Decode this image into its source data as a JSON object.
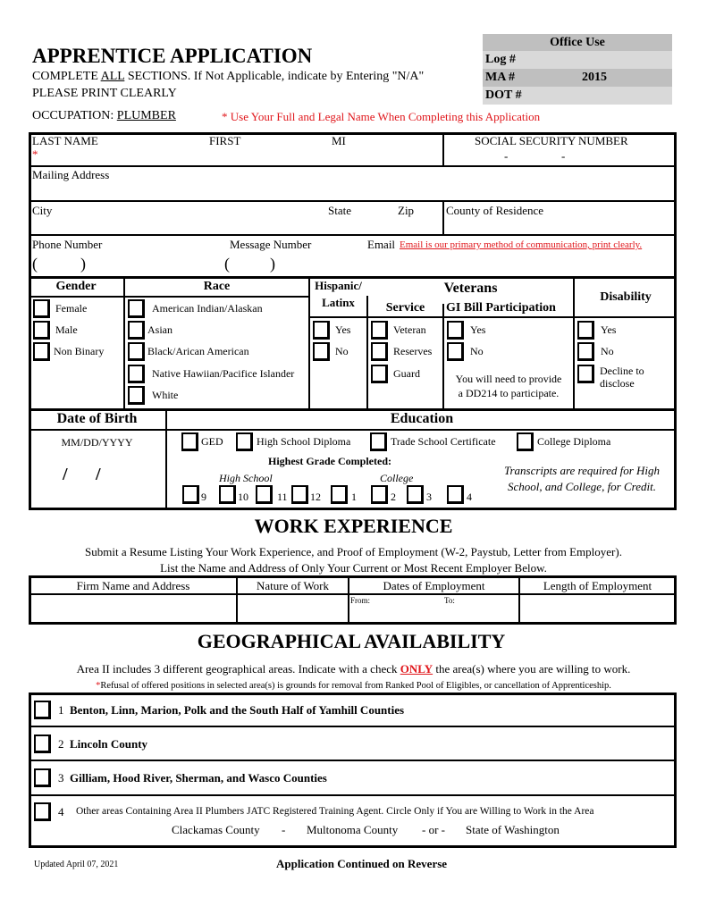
{
  "header": {
    "title": "APPRENTICE APPLICATION",
    "instruction_pre": "COMPLETE ",
    "instruction_all": "ALL",
    "instruction_post": " SECTIONS. If Not Applicable, indicate by Entering \"N/A\"",
    "print_clearly": "PLEASE PRINT CLEARLY",
    "occupation_label": "OCCUPATION: ",
    "occupation_value": "PLUMBER",
    "legal_name_note": "* Use Your Full and Legal Name When Completing this Application"
  },
  "office_use": {
    "title": "Office Use",
    "log_label": "Log #",
    "ma_label": "MA #",
    "ma_value": "2015",
    "dot_label": "DOT #"
  },
  "personal": {
    "last_name": "LAST NAME",
    "required_mark": "*",
    "first": "FIRST",
    "mi": "MI",
    "ssn": "SOCIAL SECURITY NUMBER",
    "ssn_dash": "-",
    "mailing": "Mailing Address",
    "city": "City",
    "state": "State",
    "zip": "Zip",
    "county": "County of Residence",
    "phone": "Phone Number",
    "message": "Message Number",
    "email": "Email",
    "email_note": "Email is our primary method of communication, print clearly.",
    "paren_open": "(",
    "paren_close": ")"
  },
  "demographics": {
    "gender": {
      "title": "Gender",
      "options": [
        "Female",
        "Male",
        "Non Binary"
      ]
    },
    "race": {
      "title": "Race",
      "options": [
        "American Indian/Alaskan",
        "Asian",
        "Black/Arican American",
        "Native Hawiian/Pacifice Islander",
        "White"
      ]
    },
    "hispanic": {
      "title1": "Hispanic/",
      "title2": "Latinx",
      "options": [
        "Yes",
        "No"
      ]
    },
    "veterans": {
      "title": "Veterans",
      "service_title": "Service",
      "service_options": [
        "Veteran",
        "Reserves",
        "Guard"
      ],
      "gi_title": "GI Bill Participation",
      "gi_options": [
        "Yes",
        "No"
      ],
      "gi_note1": "You will need to provide",
      "gi_note2": "a DD214 to participate."
    },
    "disability": {
      "title": "Disability",
      "options": [
        "Yes",
        "No",
        "Decline to",
        "disclose"
      ]
    }
  },
  "dob": {
    "title": "Date of Birth",
    "format": "MM/DD/YYYY",
    "slash": "/"
  },
  "education": {
    "title": "Education",
    "options": [
      "GED",
      "High School Diploma",
      "Trade School Certificate",
      "College Diploma"
    ],
    "highest_grade": "Highest Grade Completed:",
    "high_school": "High School",
    "college": "College",
    "grades": [
      "9",
      "10",
      "11",
      "12",
      "1",
      "2",
      "3",
      "4"
    ],
    "transcripts1": "Transcripts are required for High",
    "transcripts2": "School, and College, for Credit."
  },
  "work": {
    "title": "WORK EXPERIENCE",
    "line1": "Submit a Resume Listing Your Work Experience, and Proof of Employment (W-2, Paystub, Letter from Employer).",
    "line2": "List the Name and Address of Only Your Current or Most Recent Employer Below.",
    "columns": [
      "Firm Name and Address",
      "Nature of Work",
      "Dates of Employment",
      "Length of Employment"
    ],
    "from": "From:",
    "to": "To:"
  },
  "geo": {
    "title": "GEOGRAPHICAL AVAILABILITY",
    "line1_pre": "Area II includes 3 different geographical areas.  Indicate with a check ",
    "line1_only": "ONLY",
    "line1_post": " the area(s) where you are willing to work.",
    "warning_mark": "*",
    "warning": "Refusal of offered positions in selected area(s) is grounds for removal from Ranked Pool of Eligibles, or cancellation of Apprenticeship.",
    "areas": [
      {
        "num": "1",
        "label": "Benton, Linn, Marion, Polk and the South Half of Yamhill Counties"
      },
      {
        "num": "2",
        "label": "Lincoln County"
      },
      {
        "num": "3",
        "label": "Gilliam, Hood River, Sherman, and Wasco Counties"
      },
      {
        "num": "4",
        "label": "Other areas Containing Area II Plumbers JATC Registered Training Agent. Circle Only if You are Willing to Work in the Area"
      }
    ],
    "other_options": [
      "Clackamas County",
      "-",
      "Multonoma County",
      "- or -",
      "State of Washington"
    ]
  },
  "footer": {
    "updated": "Updated April 07, 2021",
    "continued": "Application Continued on Reverse"
  },
  "colors": {
    "red": "#e0161b",
    "office_dark": "#bfbfbf",
    "office_light": "#d9d9d9"
  }
}
